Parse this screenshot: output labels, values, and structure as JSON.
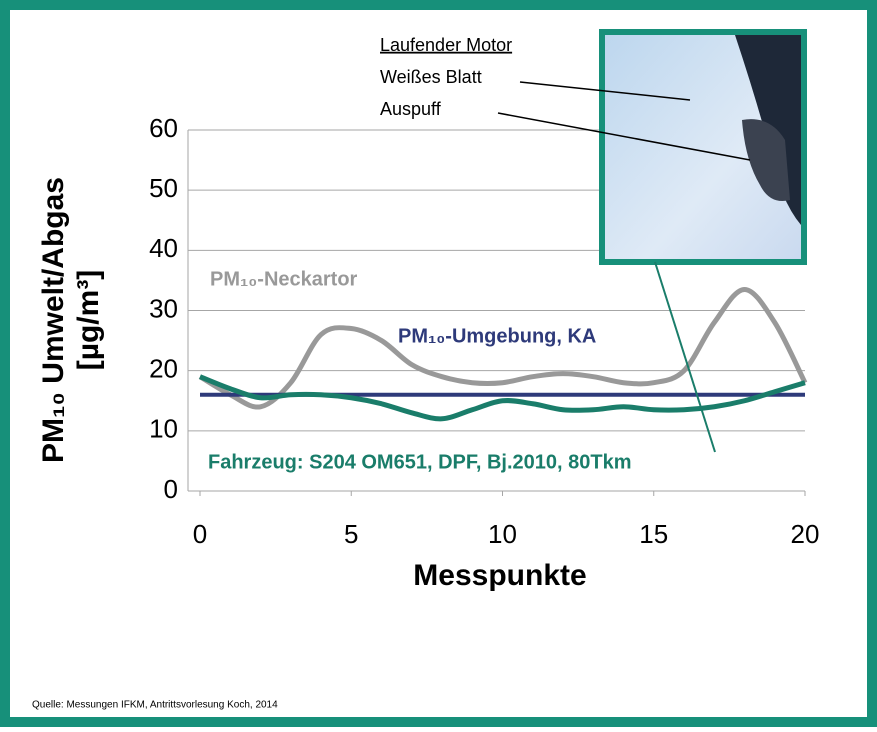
{
  "chart_data": {
    "type": "line",
    "x": [
      0,
      1,
      2,
      3,
      4,
      5,
      6,
      7,
      8,
      9,
      10,
      11,
      12,
      13,
      14,
      15,
      16,
      17,
      18,
      19,
      20
    ],
    "series": [
      {
        "name": "PM₁₀-Neckartor",
        "color": "#999999",
        "values": [
          19,
          16,
          14,
          18,
          26,
          27,
          25,
          21,
          19,
          18,
          18,
          19,
          19.5,
          19,
          18,
          18,
          20,
          28,
          33.5,
          28,
          18
        ]
      },
      {
        "name": "PM₁₀-Umgebung, KA",
        "color": "#2e3a7a",
        "values": [
          16,
          16,
          16,
          16,
          16,
          16,
          16,
          16,
          16,
          16,
          16,
          16,
          16,
          16,
          16,
          16,
          16,
          16,
          16,
          16,
          16
        ]
      },
      {
        "name": "Fahrzeug: S204 OM651, DPF, Bj.2010, 80Tkm",
        "color": "#1a7d6a",
        "values": [
          19,
          17,
          15.5,
          16,
          16,
          15.5,
          14.5,
          13,
          12,
          13.5,
          15,
          14.5,
          13.5,
          13.5,
          14,
          13.5,
          13.5,
          14,
          15,
          16.5,
          18
        ]
      }
    ],
    "xlim": [
      0,
      20
    ],
    "xticks": [
      0,
      5,
      10,
      15,
      20
    ],
    "ylim": [
      0,
      60
    ],
    "yticks": [
      0,
      10,
      20,
      30,
      40,
      50,
      60
    ],
    "grid": true,
    "xlabel": "Messpunkte",
    "ylabel": [
      "PM₁₀ Umwelt/Abgas",
      "[µg/m³]"
    ],
    "annotations": [
      "Laufender Motor",
      "Weißes Blatt",
      "Auspuff"
    ],
    "source": "Quelle: Messungen IFKM, Antrittsvorlesung Koch, 2014"
  }
}
